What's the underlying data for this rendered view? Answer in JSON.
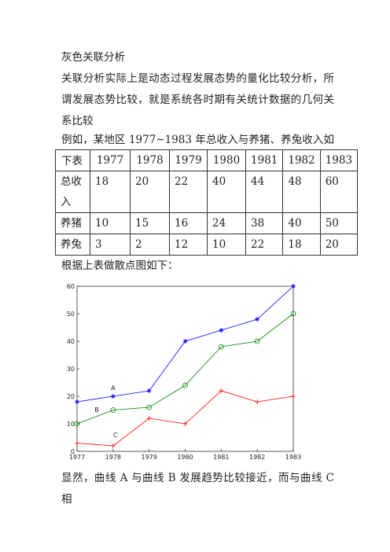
{
  "title": "灰色关联分析",
  "paragraphs": [
    "关联分析实际上是动态过程发展态势的量化比较分析，所谓发展态势比较，就是系统各时期有关统计数据的几何关系比较",
    "例如，某地区 1977~1983 年总收入与养猪、养兔收入如下表",
    "根据上表做散点图如下：",
    "显然，曲线 A 与曲线 B 发展趋势比较接近，而与曲线 C 相"
  ],
  "table": {
    "header": [
      "1977",
      "1978",
      "1979",
      "1980",
      "1981",
      "1982",
      "1983"
    ],
    "rows": [
      [
        "总收入",
        18,
        20,
        22,
        40,
        44,
        48,
        60
      ],
      [
        "养猪",
        10,
        15,
        16,
        24,
        38,
        40,
        50
      ],
      [
        "养兔",
        3,
        2,
        12,
        10,
        22,
        18,
        20
      ]
    ]
  },
  "chart_data": {
    "type": "line",
    "x": [
      1977,
      1978,
      1979,
      1980,
      1981,
      1982,
      1983
    ],
    "series": [
      {
        "name": "A",
        "color": "#0000ff",
        "marker": "star",
        "values": [
          18,
          20,
          22,
          40,
          44,
          48,
          60
        ]
      },
      {
        "name": "B",
        "color": "#008000",
        "marker": "circle",
        "values": [
          10,
          15,
          16,
          24,
          38,
          40,
          50
        ]
      },
      {
        "name": "C",
        "color": "#ff0000",
        "marker": "plus",
        "values": [
          3,
          2,
          12,
          10,
          22,
          18,
          20
        ]
      }
    ],
    "xlim": [
      1977,
      1983
    ],
    "xticks": [
      1977,
      1978,
      1979,
      1980,
      1981,
      1982,
      1983
    ],
    "ylim": [
      0,
      60
    ],
    "yticks": [
      0,
      10,
      20,
      30,
      40,
      50,
      60
    ]
  }
}
